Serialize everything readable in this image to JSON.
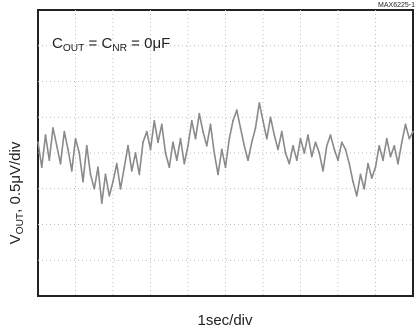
{
  "figure_id": "MAX6225-1",
  "annotation": {
    "parts": [
      {
        "t": "C",
        "sub": false
      },
      {
        "t": "OUT",
        "sub": true
      },
      {
        "t": " = C",
        "sub": false
      },
      {
        "t": "NR",
        "sub": true
      },
      {
        "t": " = 0μF",
        "sub": false
      }
    ]
  },
  "chart_data": {
    "type": "line",
    "title": "",
    "xlabel": "1sec/div",
    "ylabel_parts": [
      {
        "t": "V",
        "sub": false
      },
      {
        "t": "OUT",
        "sub": true
      },
      {
        "t": ", 0.5μV/div",
        "sub": false
      }
    ],
    "x_divisions": 10,
    "y_divisions": 8,
    "xlim": [
      0,
      10
    ],
    "ylim": [
      -4,
      4
    ],
    "grid": true,
    "grid_style": "dotted",
    "trace_color": "#8a8a8a",
    "series": [
      {
        "x": [
          0,
          0.1,
          0.2,
          0.3,
          0.4,
          0.5,
          0.6,
          0.7,
          0.8,
          0.9,
          1.0,
          1.1,
          1.2,
          1.3,
          1.4,
          1.5,
          1.6,
          1.7,
          1.8,
          1.9,
          2.0,
          2.1,
          2.2,
          2.3,
          2.4,
          2.5,
          2.6,
          2.7,
          2.8,
          2.9,
          3.0,
          3.1,
          3.2,
          3.3,
          3.4,
          3.5,
          3.6,
          3.7,
          3.8,
          3.9,
          4.0,
          4.1,
          4.2,
          4.3,
          4.4,
          4.5,
          4.6,
          4.7,
          4.8,
          4.9,
          5.0,
          5.1,
          5.2,
          5.3,
          5.4,
          5.5,
          5.6,
          5.7,
          5.8,
          5.9,
          6.0,
          6.1,
          6.2,
          6.3,
          6.4,
          6.5,
          6.6,
          6.7,
          6.8,
          6.9,
          7.0,
          7.1,
          7.2,
          7.3,
          7.4,
          7.5,
          7.6,
          7.7,
          7.8,
          7.9,
          8.0,
          8.1,
          8.2,
          8.3,
          8.4,
          8.5,
          8.6,
          8.7,
          8.8,
          8.9,
          9.0,
          9.1,
          9.2,
          9.3,
          9.4,
          9.5,
          9.6,
          9.7,
          9.8,
          9.9,
          10.0
        ],
        "y": [
          0.3,
          -0.4,
          0.5,
          -0.2,
          0.7,
          0.2,
          -0.3,
          0.6,
          0.1,
          -0.5,
          0.4,
          0.0,
          -0.8,
          0.2,
          -0.6,
          -1.0,
          -0.4,
          -1.4,
          -0.6,
          -1.2,
          -0.8,
          -0.3,
          -1.0,
          -0.4,
          0.2,
          -0.5,
          0.0,
          -0.6,
          0.3,
          0.6,
          0.1,
          0.9,
          0.3,
          0.8,
          0.0,
          -0.4,
          0.3,
          -0.2,
          0.4,
          -0.3,
          0.2,
          0.9,
          0.4,
          1.1,
          0.6,
          0.2,
          0.8,
          0.0,
          -0.6,
          0.1,
          -0.4,
          0.4,
          0.9,
          1.2,
          0.7,
          0.2,
          -0.2,
          0.3,
          0.7,
          1.4,
          0.9,
          0.4,
          1.0,
          0.5,
          0.1,
          0.6,
          0.0,
          -0.3,
          0.2,
          -0.2,
          0.4,
          0.0,
          0.5,
          -0.1,
          0.3,
          0.0,
          -0.5,
          0.2,
          0.5,
          0.1,
          -0.2,
          0.3,
          0.1,
          -0.3,
          -0.8,
          -1.2,
          -0.6,
          -1.0,
          -0.3,
          -0.7,
          -0.4,
          0.2,
          -0.2,
          0.4,
          -0.1,
          0.2,
          -0.3,
          0.3,
          0.8,
          0.4,
          0.6
        ]
      }
    ]
  }
}
